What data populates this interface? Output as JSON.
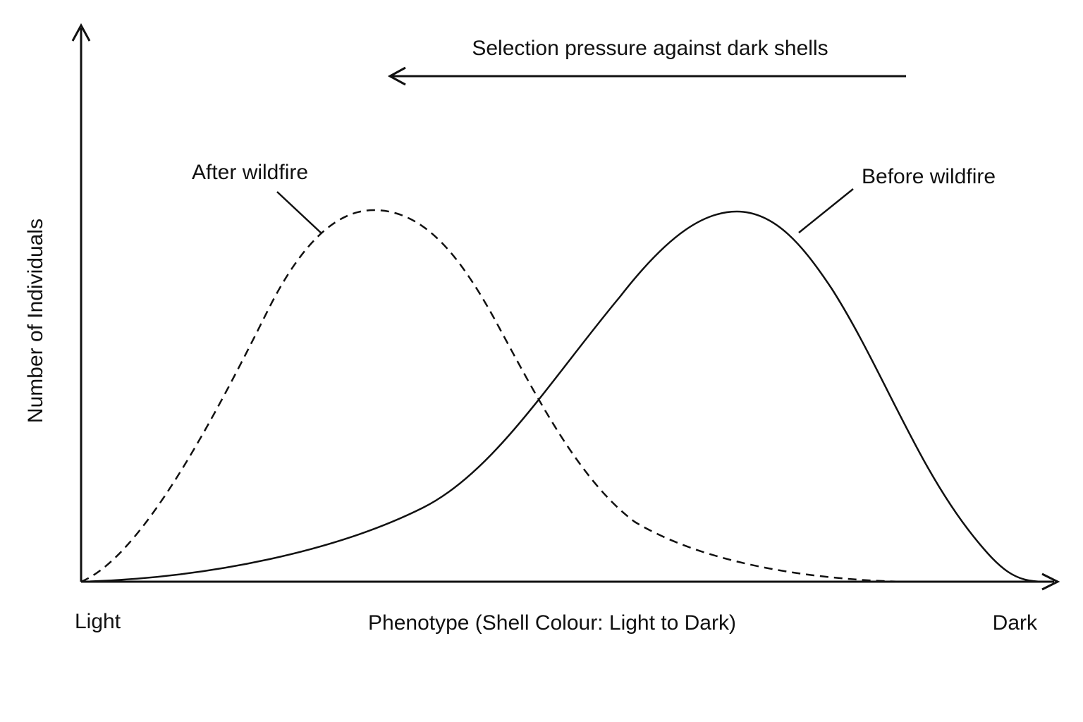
{
  "annotation": "Selection pressure against dark shells",
  "curves": {
    "after": "After wildfire",
    "before": "Before wildfire"
  },
  "axes": {
    "y_label": "Number of Individuals",
    "x_label": "Phenotype (Shell Colour: Light to Dark)",
    "x_start": "Light",
    "x_end": "Dark"
  }
}
